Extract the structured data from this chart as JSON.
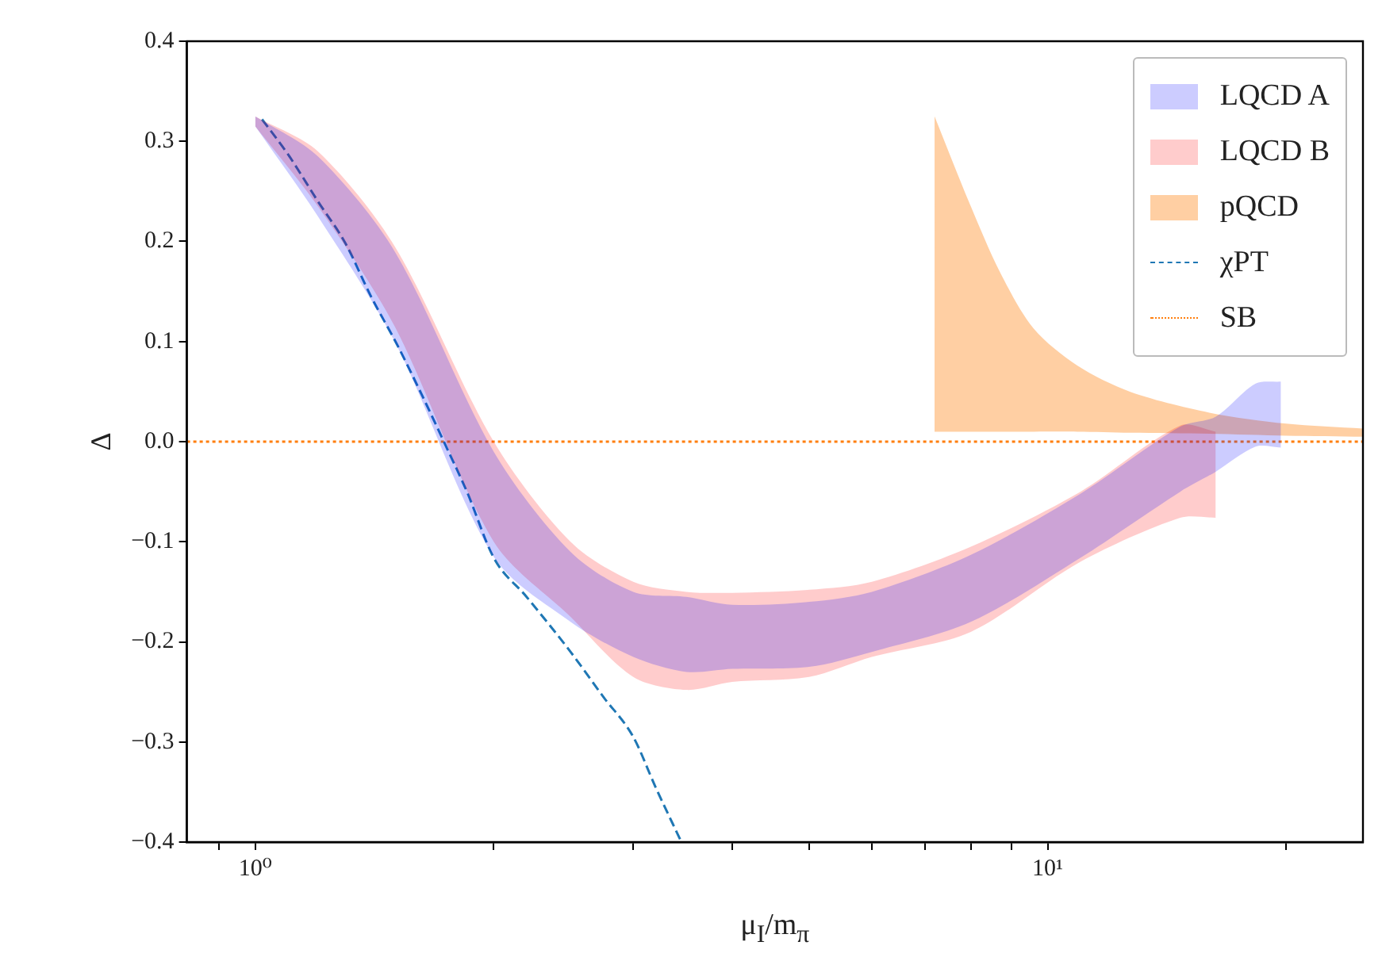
{
  "chart_data": {
    "type": "line",
    "xlabel": "μ$_{I}$/m$_{π}$",
    "ylabel": "Δ",
    "log": "x",
    "xlim": [
      0.82,
      25
    ],
    "ylim": [
      -0.4,
      0.4
    ],
    "xticks": [
      {
        "value": 0.9,
        "label": null
      },
      {
        "value": 1,
        "label": "10⁰"
      },
      {
        "value": 2,
        "label": null
      },
      {
        "value": 3,
        "label": null
      },
      {
        "value": 4,
        "label": null
      },
      {
        "value": 5,
        "label": null
      },
      {
        "value": 6,
        "label": null
      },
      {
        "value": 7,
        "label": null
      },
      {
        "value": 8,
        "label": null
      },
      {
        "value": 9,
        "label": null
      },
      {
        "value": 10,
        "label": "10¹"
      },
      {
        "value": 20,
        "label": null
      }
    ],
    "yticks": [
      {
        "value": -0.4,
        "label": "−0.4"
      },
      {
        "value": -0.3,
        "label": "−0.3"
      },
      {
        "value": -0.2,
        "label": "−0.2"
      },
      {
        "value": -0.1,
        "label": "−0.1"
      },
      {
        "value": 0,
        "label": "0.0"
      },
      {
        "value": 0.1,
        "label": "0.1"
      },
      {
        "value": 0.2,
        "label": "0.2"
      },
      {
        "value": 0.3,
        "label": "0.3"
      },
      {
        "value": 0.4,
        "label": "0.4"
      }
    ],
    "grid": false,
    "legend": "top right",
    "series": [
      {
        "name": "LQCD A",
        "type": "area",
        "color": "#ccccff",
        "x": [
          1.0,
          1.2,
          1.5,
          2,
          2.5,
          3,
          3.5,
          4,
          5,
          6,
          8,
          11,
          14.7,
          16.3,
          18.3,
          19.7
        ],
        "values": [
          null,
          null,
          null,
          null,
          null,
          null,
          null,
          null,
          null,
          null,
          null,
          null,
          null,
          null,
          null,
          null
        ],
        "lower": [
          0.315,
          0.225,
          0.1,
          -0.115,
          -0.18,
          -0.215,
          -0.23,
          -0.227,
          -0.225,
          -0.21,
          -0.18,
          -0.116,
          -0.05,
          -0.03,
          -0.005,
          -0.006
        ],
        "upper": [
          0.325,
          0.285,
          0.19,
          -0.01,
          -0.11,
          -0.15,
          -0.155,
          -0.163,
          -0.16,
          -0.15,
          -0.113,
          -0.052,
          0.015,
          0.025,
          0.058,
          0.06
        ]
      },
      {
        "name": "LQCD B",
        "type": "area",
        "color": "#ffcccc",
        "x": [
          1.0,
          1.2,
          1.5,
          2,
          2.5,
          3,
          3.5,
          4,
          5,
          6,
          8,
          11,
          14.7,
          16.3
        ],
        "values": [
          null,
          null,
          null,
          null,
          null,
          null,
          null,
          null,
          null,
          null,
          null,
          null,
          null,
          null
        ],
        "lower": [
          0.315,
          0.235,
          0.115,
          -0.1,
          -0.175,
          -0.235,
          -0.248,
          -0.24,
          -0.235,
          -0.215,
          -0.19,
          -0.12,
          -0.076,
          -0.076
        ],
        "upper": [
          0.325,
          0.29,
          0.195,
          0.0,
          -0.1,
          -0.14,
          -0.15,
          -0.151,
          -0.148,
          -0.14,
          -0.105,
          -0.05,
          0.016,
          0.01
        ]
      },
      {
        "name": "pQCD",
        "type": "area",
        "color": "#ffcfa3",
        "x": [
          7.2,
          8.0,
          8.7,
          9.6,
          10.9,
          12.7,
          16,
          20,
          25
        ],
        "values": [
          null,
          null,
          null,
          null,
          null,
          null,
          null,
          null,
          null
        ],
        "lower": [
          0.01,
          0.01,
          0.01,
          0.01,
          0.01,
          0.009,
          0.008,
          0.006,
          0.005
        ],
        "upper": [
          0.325,
          0.235,
          0.17,
          0.113,
          0.076,
          0.05,
          0.029,
          0.018,
          0.013
        ]
      },
      {
        "name": "χPT",
        "type": "line",
        "line_style": "dashed",
        "color": "#1f77b4",
        "x": [
          1.02,
          1.1,
          1.2,
          1.3,
          1.4,
          1.51,
          1.62,
          1.73,
          1.85,
          2.0,
          2.2,
          2.5,
          2.75,
          3.0,
          3.2,
          3.45
        ],
        "values": [
          0.322,
          0.287,
          0.24,
          0.198,
          0.145,
          0.097,
          0.048,
          0.0,
          -0.05,
          -0.116,
          -0.155,
          -0.21,
          -0.255,
          -0.295,
          -0.345,
          -0.4
        ]
      },
      {
        "name": "SB",
        "type": "line",
        "line_style": "dotted",
        "color": "#ff7f0e",
        "x": [
          0.82,
          25
        ],
        "values": [
          0,
          0
        ]
      }
    ]
  }
}
